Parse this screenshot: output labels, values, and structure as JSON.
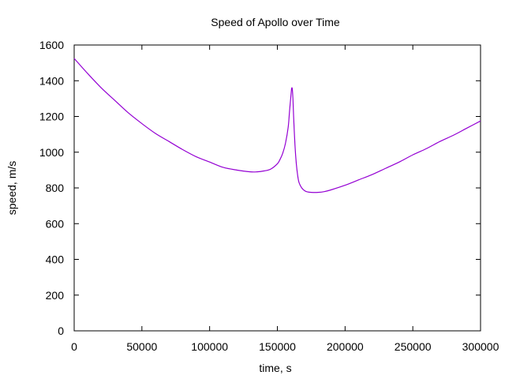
{
  "chart_data": {
    "type": "line",
    "title": "Speed of Apollo over Time",
    "xlabel": "time, s",
    "ylabel": "speed, m/s",
    "xlim": [
      0,
      300000
    ],
    "ylim": [
      0,
      1600
    ],
    "x_ticks": [
      0,
      50000,
      100000,
      150000,
      200000,
      250000,
      300000
    ],
    "y_ticks": [
      0,
      200,
      400,
      600,
      800,
      1000,
      1200,
      1400,
      1600
    ],
    "x_tick_labels": [
      "0",
      "50000",
      "100000",
      "150000",
      "200000",
      "250000",
      "300000"
    ],
    "y_tick_labels": [
      "0",
      "200",
      "400",
      "600",
      "800",
      "1000",
      "1200",
      "1400",
      "1600"
    ],
    "grid": false,
    "legend": "none",
    "series_color": "#9400d3",
    "x": [
      0,
      10000,
      20000,
      30000,
      40000,
      50000,
      60000,
      70000,
      80000,
      90000,
      100000,
      110000,
      120000,
      130000,
      135000,
      140000,
      145000,
      150000,
      152000,
      154000,
      156000,
      158000,
      159000,
      160000,
      160500,
      161000,
      161500,
      162000,
      163000,
      164000,
      165000,
      166000,
      168000,
      170000,
      172000,
      175000,
      180000,
      185000,
      190000,
      200000,
      210000,
      220000,
      230000,
      240000,
      250000,
      260000,
      270000,
      280000,
      290000,
      300000
    ],
    "y": [
      1525,
      1440,
      1360,
      1290,
      1220,
      1160,
      1105,
      1060,
      1015,
      975,
      945,
      915,
      900,
      890,
      890,
      895,
      905,
      935,
      960,
      995,
      1050,
      1140,
      1230,
      1315,
      1355,
      1355,
      1300,
      1200,
      1040,
      935,
      870,
      830,
      800,
      785,
      778,
      775,
      775,
      780,
      790,
      815,
      845,
      875,
      910,
      945,
      985,
      1020,
      1060,
      1095,
      1135,
      1175
    ]
  }
}
